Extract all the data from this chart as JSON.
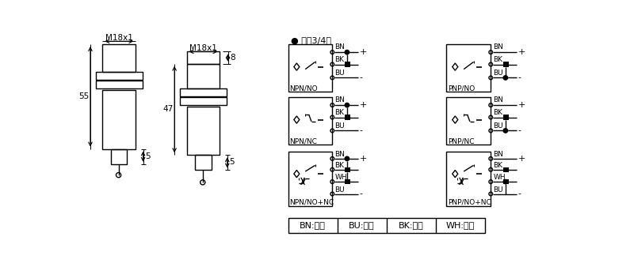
{
  "bg_color": "#ffffff",
  "header_text": "直冁3/4线",
  "legend_items": [
    "BN:棕色",
    "BU:兰色",
    "BK:黑色",
    "WH:白色"
  ],
  "left_circuits": [
    "NPN/NO",
    "NPN/NC",
    "NPN/NO+NC"
  ],
  "right_circuits": [
    "PNP/NO",
    "PNP/NC",
    "PNP/NO+NC"
  ],
  "dim_m18x1": "M18x1",
  "dim_55": "55",
  "dim_47": "47",
  "dim_8": "8",
  "dim_5a": "5",
  "dim_5b": "5"
}
